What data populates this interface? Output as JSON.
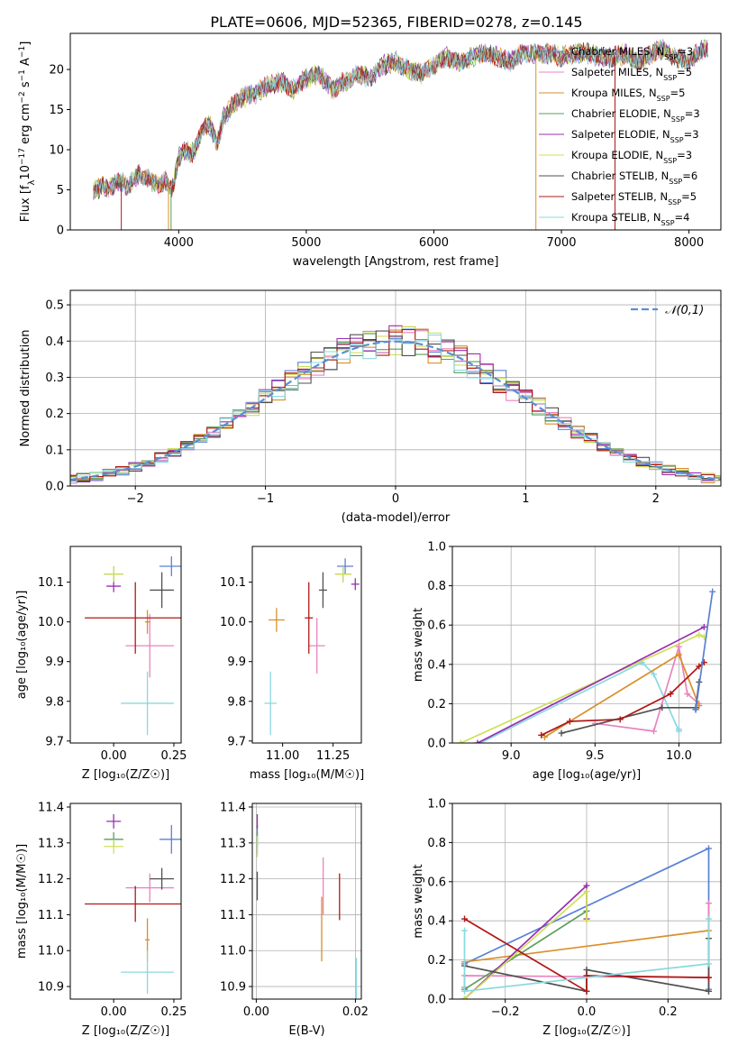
{
  "figure_title": "PLATE=0606, MJD=52365, FIBERID=0278, z=0.145",
  "models": [
    {
      "name": "Chabrier MILES, N_SSP=3",
      "label_main": "Chabrier MILES, N",
      "label_sub": "SSP",
      "label_tail": "=3",
      "color": "#5b80d4"
    },
    {
      "name": "Salpeter MILES, N_SSP=5",
      "label_main": "Salpeter MILES, N",
      "label_sub": "SSP",
      "label_tail": "=5",
      "color": "#e884bf"
    },
    {
      "name": "Kroupa MILES, N_SSP=5",
      "label_main": "Kroupa MILES, N",
      "label_sub": "SSP",
      "label_tail": "=5",
      "color": "#d98f2a"
    },
    {
      "name": "Chabrier ELODIE, N_SSP=3",
      "label_main": "Chabrier ELODIE, N",
      "label_sub": "SSP",
      "label_tail": "=3",
      "color": "#5a9e5a"
    },
    {
      "name": "Salpeter ELODIE, N_SSP=3",
      "label_main": "Salpeter ELODIE, N",
      "label_sub": "SSP",
      "label_tail": "=3",
      "color": "#9a2fb0"
    },
    {
      "name": "Kroupa ELODIE, N_SSP=3",
      "label_main": "Kroupa ELODIE, N",
      "label_sub": "SSP",
      "label_tail": "=3",
      "color": "#cde05a"
    },
    {
      "name": "Chabrier STELIB, N_SSP=6",
      "label_main": "Chabrier STELIB, N",
      "label_sub": "SSP",
      "label_tail": "=6",
      "color": "#505050"
    },
    {
      "name": "Salpeter STELIB, N_SSP=5",
      "label_main": "Salpeter STELIB, N",
      "label_sub": "SSP",
      "label_tail": "=5",
      "color": "#b01818"
    },
    {
      "name": "Kroupa STELIB, N_SSP=4",
      "label_main": "Kroupa STELIB, N",
      "label_sub": "SSP",
      "label_tail": "=4",
      "color": "#8ad8e0"
    }
  ],
  "chart_data": [
    {
      "id": "spectrum",
      "type": "line",
      "title": "",
      "xlabel": "wavelength [Angstrom, rest frame]",
      "ylabel_parts": {
        "a": "Flux [f",
        "b": "λ",
        "c": "10",
        "d": "−17",
        "e": " erg cm",
        "f": "−2",
        "g": " s",
        "h": "−1",
        "i": " A",
        "j": "−1",
        "k": "]"
      },
      "xlim": [
        3150,
        8250
      ],
      "ylim": [
        0,
        24.5
      ],
      "xticks": [
        4000,
        5000,
        6000,
        7000,
        8000
      ],
      "yticks": [
        0,
        5,
        10,
        15,
        20
      ],
      "grid": false,
      "legend": "right",
      "x": [
        3350,
        3400,
        3450,
        3500,
        3550,
        3600,
        3650,
        3700,
        3750,
        3800,
        3850,
        3900,
        3950,
        4000,
        4050,
        4100,
        4150,
        4200,
        4250,
        4300,
        4350,
        4400,
        4450,
        4500,
        4600,
        4700,
        4800,
        4900,
        5000,
        5100,
        5200,
        5300,
        5400,
        5500,
        5600,
        5700,
        5800,
        5900,
        6000,
        6100,
        6200,
        6300,
        6400,
        6500,
        6600,
        6700,
        6800,
        6900,
        7000,
        7100,
        7200,
        7300,
        7400,
        7500,
        7600,
        7700,
        7800,
        7900,
        8000,
        8100,
        8150
      ],
      "flux": [
        5,
        5.5,
        5.2,
        5.8,
        6,
        5.2,
        6.5,
        7,
        6.5,
        6,
        5.5,
        6.2,
        5,
        9,
        10,
        9.5,
        11,
        13,
        13,
        10.5,
        14,
        15,
        16,
        16.5,
        17,
        18,
        18.5,
        17.5,
        19,
        19.5,
        17.5,
        18.5,
        19.5,
        19,
        20.5,
        21,
        20,
        19.5,
        20.5,
        21.5,
        21,
        21.5,
        22,
        21.5,
        21,
        22,
        22,
        22,
        21.5,
        22,
        22,
        21.5,
        21.5,
        22,
        21,
        22,
        22.5,
        21.5,
        21,
        22.5,
        22.5
      ],
      "drop_lines_x": [
        3550,
        3920,
        3940,
        6800,
        7420
      ]
    },
    {
      "id": "residuals",
      "type": "histogram",
      "title": "",
      "xlabel": "(data-model)/error",
      "ylabel": "Normed distribution",
      "xlim": [
        -2.5,
        2.5
      ],
      "ylim": [
        0,
        0.54
      ],
      "xticks": [
        -2,
        -1,
        0,
        1,
        2
      ],
      "xtick_labels": [
        "−2",
        "−1",
        "0",
        "1",
        "2"
      ],
      "yticks": [
        0,
        0.1,
        0.2,
        0.3,
        0.4,
        0.5
      ],
      "ytick_labels": [
        "0.0",
        "0.1",
        "0.2",
        "0.3",
        "0.4",
        "0.5"
      ],
      "grid": true,
      "bin_width": 0.1,
      "reference_curve": {
        "name": "𝒩(0,1)",
        "mean": 0,
        "sigma": 1,
        "color": "#5b8ed4"
      },
      "legend": "top-right"
    },
    {
      "id": "age-vs-Z",
      "type": "scatter",
      "xlabel": "Z [log₁₀(Z/Z☉)]",
      "ylabel": "age  [log₁₀(age/yr)]",
      "xlim": [
        -0.18,
        0.28
      ],
      "ylim": [
        9.695,
        10.19
      ],
      "xticks": [
        0,
        0.25
      ],
      "xtick_labels": [
        "0.00",
        "0.25"
      ],
      "yticks": [
        9.7,
        9.8,
        9.9,
        10.0,
        10.1
      ],
      "ytick_labels": [
        "9.7",
        "9.8",
        "9.9",
        "10.0",
        "10.1"
      ],
      "grid": false,
      "points": [
        {
          "model": 0,
          "x": 0.24,
          "y": 10.14,
          "xerr": 0.05,
          "yerr": 0.025
        },
        {
          "model": 1,
          "x": 0.15,
          "y": 9.94,
          "xerr": 0.1,
          "yerr": 0.08
        },
        {
          "model": 2,
          "x": 0.14,
          "y": 10.0,
          "xerr": 0.01,
          "yerr": 0.03
        },
        {
          "model": 3,
          "x": 0.0,
          "y": 10.12,
          "xerr": 0.04,
          "yerr": 0.02
        },
        {
          "model": 4,
          "x": 0.0,
          "y": 10.09,
          "xerr": 0.03,
          "yerr": 0.015
        },
        {
          "model": 5,
          "x": 0.0,
          "y": 10.12,
          "xerr": 0.04,
          "yerr": 0.02
        },
        {
          "model": 6,
          "x": 0.2,
          "y": 10.08,
          "xerr": 0.05,
          "yerr": 0.045
        },
        {
          "model": 7,
          "x": 0.09,
          "y": 10.01,
          "xerr": 0.21,
          "yerr": 0.09
        },
        {
          "model": 8,
          "x": 0.14,
          "y": 9.795,
          "xerr": 0.11,
          "yerr": 0.08
        }
      ]
    },
    {
      "id": "age-vs-mass",
      "type": "scatter",
      "xlabel": "mass [log₁₀(M/M☉)]",
      "ylabel": "",
      "xlim": [
        10.85,
        11.39
      ],
      "ylim": [
        9.695,
        10.19
      ],
      "xticks": [
        11.0,
        11.25
      ],
      "xtick_labels": [
        "11.00",
        "11.25"
      ],
      "yticks": [
        9.7,
        9.8,
        9.9,
        10.0,
        10.1
      ],
      "ytick_labels": [
        "9.7",
        "9.8",
        "9.9",
        "10.0",
        "10.1"
      ],
      "grid": false,
      "points": [
        {
          "model": 0,
          "x": 11.31,
          "y": 10.14,
          "xerr": 0.04,
          "yerr": 0.02
        },
        {
          "model": 1,
          "x": 11.17,
          "y": 9.94,
          "xerr": 0.04,
          "yerr": 0.07
        },
        {
          "model": 2,
          "x": 10.97,
          "y": 10.005,
          "xerr": 0.04,
          "yerr": 0.03
        },
        {
          "model": 3,
          "x": 11.3,
          "y": 10.12,
          "xerr": 0.04,
          "yerr": 0.02
        },
        {
          "model": 4,
          "x": 11.36,
          "y": 10.095,
          "xerr": 0.02,
          "yerr": 0.015
        },
        {
          "model": 5,
          "x": 11.3,
          "y": 10.12,
          "xerr": 0.04,
          "yerr": 0.02
        },
        {
          "model": 6,
          "x": 11.2,
          "y": 10.08,
          "xerr": 0.02,
          "yerr": 0.045
        },
        {
          "model": 7,
          "x": 11.13,
          "y": 10.01,
          "xerr": 0.02,
          "yerr": 0.09
        },
        {
          "model": 8,
          "x": 10.94,
          "y": 9.795,
          "xerr": 0.03,
          "yerr": 0.08
        }
      ]
    },
    {
      "id": "weight-vs-age",
      "type": "line",
      "xlabel": "age  [log₁₀(age/yr)]",
      "ylabel": "mass weight",
      "xlim": [
        8.65,
        10.25
      ],
      "ylim": [
        0,
        1.0
      ],
      "xticks": [
        9.0,
        9.5,
        10.0
      ],
      "xtick_labels": [
        "9.0",
        "9.5",
        "10.0"
      ],
      "yticks": [
        0,
        0.2,
        0.4,
        0.6,
        0.8,
        1.0
      ],
      "ytick_labels": [
        "0.0",
        "0.2",
        "0.4",
        "0.6",
        "0.8",
        "1.0"
      ],
      "grid": true,
      "series": [
        {
          "model": 8,
          "points": [
            [
              8.7,
              -0.05
            ],
            [
              9.78,
              0.41
            ],
            [
              9.85,
              0.35
            ],
            [
              10.0,
              0.06
            ],
            [
              10.0,
              0.07
            ]
          ]
        },
        {
          "model": 5,
          "points": [
            [
              8.7,
              0.0
            ],
            [
              10.12,
              0.55
            ],
            [
              10.15,
              0.54
            ]
          ]
        },
        {
          "model": 4,
          "points": [
            [
              8.8,
              0.0
            ],
            [
              10.15,
              0.59
            ]
          ]
        },
        {
          "model": 1,
          "points": [
            [
              9.5,
              0.1
            ],
            [
              9.85,
              0.06
            ],
            [
              10.0,
              0.49
            ],
            [
              10.05,
              0.25
            ],
            [
              10.12,
              0.2
            ]
          ]
        },
        {
          "model": 2,
          "points": [
            [
              9.2,
              0.03
            ],
            [
              9.35,
              0.11
            ],
            [
              10.0,
              0.45
            ],
            [
              10.12,
              0.19
            ]
          ]
        },
        {
          "model": 6,
          "points": [
            [
              9.3,
              0.05
            ],
            [
              9.9,
              0.18
            ],
            [
              10.1,
              0.18
            ],
            [
              10.12,
              0.31
            ],
            [
              10.1,
              0.17
            ]
          ]
        },
        {
          "model": 7,
          "points": [
            [
              9.18,
              0.04
            ],
            [
              9.35,
              0.11
            ],
            [
              9.65,
              0.12
            ],
            [
              9.95,
              0.25
            ],
            [
              10.12,
              0.39
            ],
            [
              10.15,
              0.41
            ]
          ]
        },
        {
          "model": 0,
          "points": [
            [
              10.1,
              0.17
            ],
            [
              10.2,
              0.77
            ]
          ]
        }
      ]
    },
    {
      "id": "mass-vs-Z",
      "type": "scatter",
      "xlabel": "Z [log₁₀(Z/Z☉)]",
      "ylabel": "mass [log₁₀(M/M☉)]",
      "xlim": [
        -0.18,
        0.28
      ],
      "ylim": [
        10.865,
        11.41
      ],
      "xticks": [
        0,
        0.25
      ],
      "xtick_labels": [
        "0.00",
        "0.25"
      ],
      "yticks": [
        10.9,
        11.0,
        11.1,
        11.2,
        11.3,
        11.4
      ],
      "ytick_labels": [
        "10.9",
        "11.0",
        "11.1",
        "11.2",
        "11.3",
        "11.4"
      ],
      "grid": false,
      "points": [
        {
          "model": 0,
          "x": 0.24,
          "y": 11.31,
          "xerr": 0.05,
          "yerr": 0.04
        },
        {
          "model": 1,
          "x": 0.15,
          "y": 11.175,
          "xerr": 0.1,
          "yerr": 0.04
        },
        {
          "model": 2,
          "x": 0.14,
          "y": 11.03,
          "xerr": 0.01,
          "yerr": 0.06
        },
        {
          "model": 3,
          "x": 0.0,
          "y": 11.31,
          "xerr": 0.04,
          "yerr": 0.02
        },
        {
          "model": 4,
          "x": 0.0,
          "y": 11.36,
          "xerr": 0.03,
          "yerr": 0.02
        },
        {
          "model": 5,
          "x": 0.0,
          "y": 11.29,
          "xerr": 0.04,
          "yerr": 0.02
        },
        {
          "model": 6,
          "x": 0.2,
          "y": 11.2,
          "xerr": 0.05,
          "yerr": 0.03
        },
        {
          "model": 7,
          "x": 0.09,
          "y": 11.13,
          "xerr": 0.21,
          "yerr": 0.05
        },
        {
          "model": 8,
          "x": 0.14,
          "y": 10.94,
          "xerr": 0.11,
          "yerr": 0.06
        }
      ]
    },
    {
      "id": "mass-vs-EBV",
      "type": "scatter",
      "xlabel": "E(B-V)",
      "ylabel": "",
      "xlim": [
        -0.0008,
        0.0212
      ],
      "ylim": [
        10.865,
        11.41
      ],
      "xticks": [
        0.0,
        0.02
      ],
      "xtick_labels": [
        "0.00",
        "0.02"
      ],
      "yticks": [
        10.9,
        11.0,
        11.1,
        11.2,
        11.3,
        11.4
      ],
      "ytick_labels": [
        "10.9",
        "11.0",
        "11.1",
        "11.2",
        "11.3",
        "11.4"
      ],
      "grid": true,
      "points": [
        {
          "model": 0,
          "x": 0.0002,
          "y": 11.31,
          "xerr": 0,
          "yerr": 0.04
        },
        {
          "model": 1,
          "x": 0.0135,
          "y": 11.18,
          "xerr": 0,
          "yerr": 0.08
        },
        {
          "model": 2,
          "x": 0.0132,
          "y": 11.06,
          "xerr": 0,
          "yerr": 0.09
        },
        {
          "model": 3,
          "x": 0.0002,
          "y": 11.31,
          "xerr": 0,
          "yerr": 0.02
        },
        {
          "model": 4,
          "x": 0.0002,
          "y": 11.36,
          "xerr": 0,
          "yerr": 0.02
        },
        {
          "model": 5,
          "x": 0.0002,
          "y": 11.29,
          "xerr": 0,
          "yerr": 0.03
        },
        {
          "model": 6,
          "x": 0.0002,
          "y": 11.18,
          "xerr": 0,
          "yerr": 0.04
        },
        {
          "model": 7,
          "x": 0.0168,
          "y": 11.15,
          "xerr": 0,
          "yerr": 0.065
        },
        {
          "model": 8,
          "x": 0.0202,
          "y": 10.92,
          "xerr": 0,
          "yerr": 0.06
        }
      ]
    },
    {
      "id": "weight-vs-Z",
      "type": "line",
      "xlabel": "Z [log₁₀(Z/Z☉)]",
      "ylabel": "mass weight",
      "xlim": [
        -0.33,
        0.33
      ],
      "ylim": [
        0,
        1.0
      ],
      "xticks": [
        -0.2,
        0.0,
        0.2
      ],
      "xtick_labels": [
        "−0.2",
        "0.0",
        "0.2"
      ],
      "yticks": [
        0,
        0.2,
        0.4,
        0.6,
        0.8,
        1.0
      ],
      "ytick_labels": [
        "0.0",
        "0.2",
        "0.4",
        "0.6",
        "0.8",
        "1.0"
      ],
      "grid": true,
      "series": [
        {
          "model": 0,
          "points": [
            [
              -0.3,
              0.18
            ],
            [
              0.3,
              0.77
            ],
            [
              0.3,
              0.05
            ]
          ]
        },
        {
          "model": 1,
          "points": [
            [
              -0.3,
              0.06
            ],
            [
              -0.3,
              0.12
            ],
            [
              0.3,
              0.11
            ],
            [
              0.3,
              0.49
            ],
            [
              0.3,
              0.04
            ]
          ]
        },
        {
          "model": 2,
          "points": [
            [
              -0.3,
              0.19
            ],
            [
              0.3,
              0.35
            ]
          ]
        },
        {
          "model": 3,
          "points": [
            [
              -0.3,
              0.05
            ],
            [
              0.0,
              0.45
            ]
          ]
        },
        {
          "model": 4,
          "points": [
            [
              -0.3,
              0.0
            ],
            [
              0.0,
              0.58
            ],
            [
              0.0,
              0.41
            ]
          ]
        },
        {
          "model": 5,
          "points": [
            [
              -0.3,
              0.0
            ],
            [
              0.0,
              0.55
            ],
            [
              0.0,
              0.4
            ]
          ]
        },
        {
          "model": 6,
          "points": [
            [
              -0.3,
              0.17
            ],
            [
              0.0,
              0.04
            ],
            [
              0.0,
              0.15
            ],
            [
              0.3,
              0.04
            ],
            [
              0.3,
              0.31
            ]
          ]
        },
        {
          "model": 7,
          "points": [
            [
              -0.3,
              0.41
            ],
            [
              0.0,
              0.04
            ],
            [
              0.0,
              0.12
            ],
            [
              0.3,
              0.11
            ]
          ]
        },
        {
          "model": 8,
          "points": [
            [
              -0.3,
              0.35
            ],
            [
              -0.3,
              0.04
            ],
            [
              0.3,
              0.18
            ],
            [
              0.3,
              0.41
            ]
          ]
        }
      ]
    }
  ]
}
